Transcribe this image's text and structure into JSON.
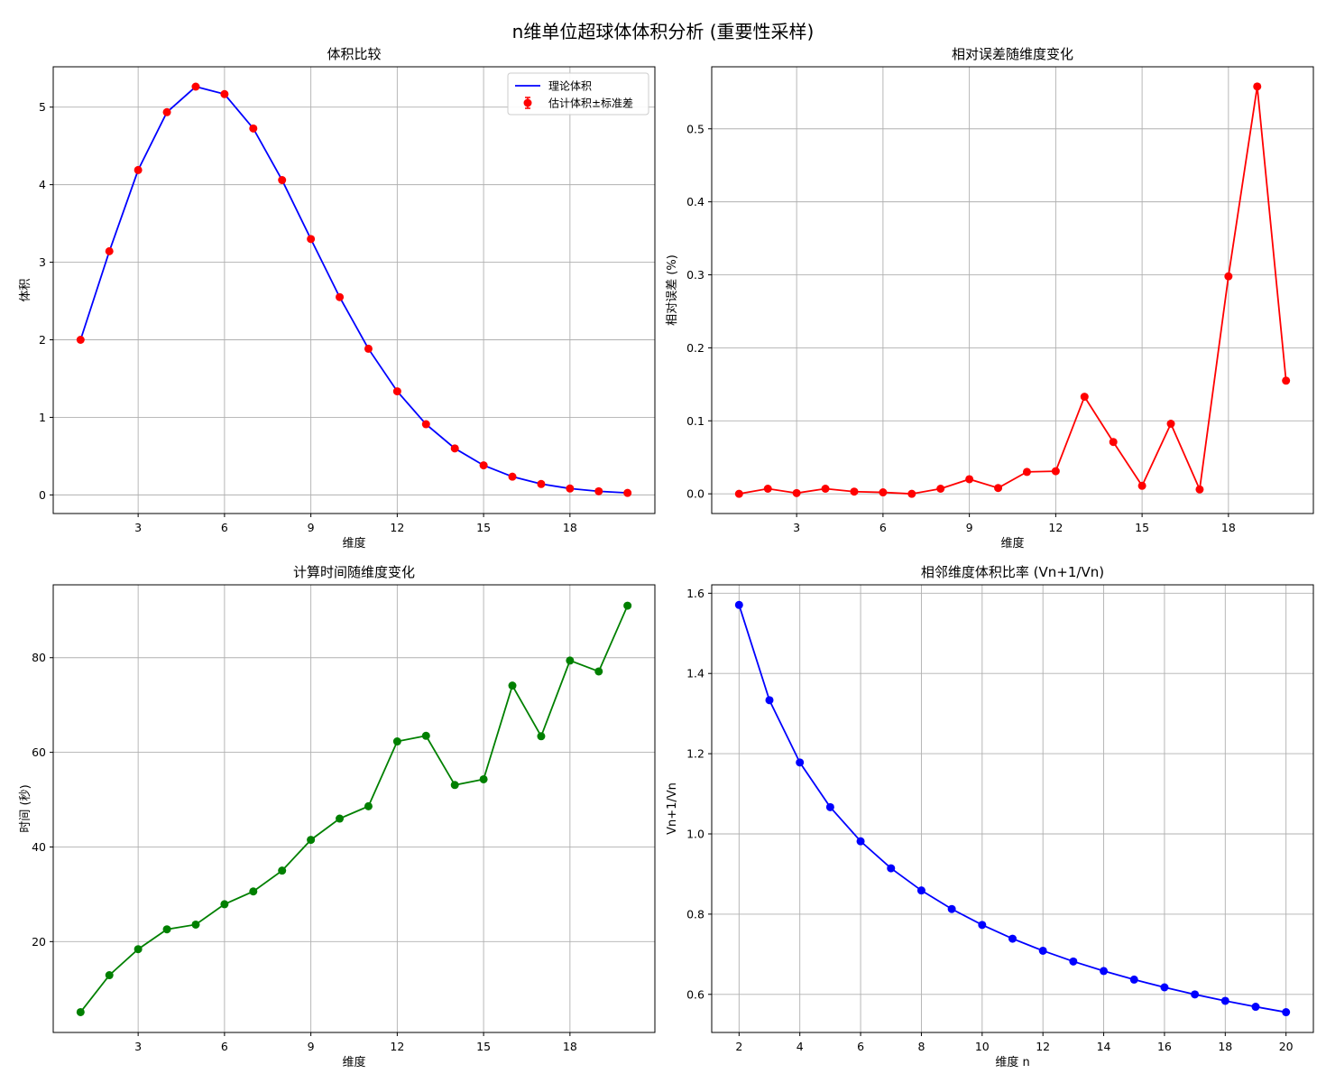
{
  "figure": {
    "title": "n维单位超球体体积分析 (重要性采样)"
  },
  "chart_data": [
    {
      "type": "line",
      "title": "体积比较",
      "xlabel": "维度",
      "ylabel": "体积",
      "xlim": [
        0.05,
        20.95
      ],
      "ylim": [
        -0.24,
        5.52
      ],
      "xticks": [
        3,
        6,
        9,
        12,
        15,
        18
      ],
      "yticks": [
        0,
        1,
        2,
        3,
        4,
        5
      ],
      "grid": true,
      "legend": "top-right",
      "series": [
        {
          "name": "理论体积",
          "kind": "line",
          "color": "#0000ff",
          "x": [
            1,
            2,
            3,
            4,
            5,
            6,
            7,
            8,
            9,
            10,
            11,
            12,
            13,
            14,
            15,
            16,
            17,
            18,
            19,
            20
          ],
          "values": [
            2.0,
            3.1416,
            4.1888,
            4.9348,
            5.2638,
            5.1677,
            4.7248,
            4.0587,
            3.2985,
            2.5502,
            1.8841,
            1.3353,
            0.9106,
            0.5993,
            0.3814,
            0.2353,
            0.141,
            0.0821,
            0.0466,
            0.0258
          ]
        },
        {
          "name": "估计体积±标准差",
          "kind": "errorbar-markers",
          "color": "#ff0000",
          "x": [
            1,
            2,
            3,
            4,
            5,
            6,
            7,
            8,
            9,
            10,
            11,
            12,
            13,
            14,
            15,
            16,
            17,
            18,
            19,
            20
          ],
          "values": [
            2.0,
            3.1418,
            4.1887,
            4.9352,
            5.264,
            5.1678,
            4.7248,
            4.059,
            3.2992,
            2.5504,
            1.8847,
            1.3357,
            0.9118,
            0.5997,
            0.3814,
            0.2355,
            0.141,
            0.0823,
            0.0467,
            0.0258
          ]
        }
      ]
    },
    {
      "type": "line",
      "title": "相对误差随维度变化",
      "xlabel": "维度",
      "ylabel": "相对误差 (%)",
      "xlim": [
        0.05,
        20.95
      ],
      "ylim": [
        -0.027,
        0.585
      ],
      "xticks": [
        3,
        6,
        9,
        12,
        15,
        18
      ],
      "yticks": [
        0.0,
        0.1,
        0.2,
        0.3,
        0.4,
        0.5
      ],
      "ytick_labels": [
        "0.0",
        "0.1",
        "0.2",
        "0.3",
        "0.4",
        "0.5"
      ],
      "grid": true,
      "series": [
        {
          "color": "#ff0000",
          "x": [
            1,
            2,
            3,
            4,
            5,
            6,
            7,
            8,
            9,
            10,
            11,
            12,
            13,
            14,
            15,
            16,
            17,
            18,
            19,
            20
          ],
          "values": [
            0.0,
            0.007,
            0.001,
            0.007,
            0.003,
            0.002,
            0.0,
            0.007,
            0.02,
            0.008,
            0.03,
            0.031,
            0.133,
            0.071,
            0.011,
            0.096,
            0.006,
            0.298,
            0.558,
            0.155
          ]
        }
      ]
    },
    {
      "type": "line",
      "title": "计算时间随维度变化",
      "xlabel": "维度",
      "ylabel": "时间 (秒)",
      "xlim": [
        0.05,
        20.95
      ],
      "ylim": [
        0.8,
        95.4
      ],
      "xticks": [
        3,
        6,
        9,
        12,
        15,
        18
      ],
      "yticks": [
        20,
        40,
        60,
        80
      ],
      "grid": true,
      "series": [
        {
          "color": "#008000",
          "x": [
            1,
            2,
            3,
            4,
            5,
            6,
            7,
            8,
            9,
            10,
            11,
            12,
            13,
            14,
            15,
            16,
            17,
            18,
            19,
            20
          ],
          "values": [
            5.1,
            12.9,
            18.4,
            22.6,
            23.6,
            27.9,
            30.6,
            35.0,
            41.5,
            46.0,
            48.6,
            62.3,
            63.5,
            53.1,
            54.3,
            74.1,
            63.4,
            79.4,
            77.1,
            91.0
          ]
        }
      ]
    },
    {
      "type": "line",
      "title": "相邻维度体积比率 (Vn+1/Vn)",
      "xlabel": "维度 n",
      "ylabel": "Vn+1/Vn",
      "xlim": [
        1.1,
        20.9
      ],
      "ylim": [
        0.505,
        1.621
      ],
      "xticks": [
        2,
        4,
        6,
        8,
        10,
        12,
        14,
        16,
        18,
        20
      ],
      "yticks": [
        0.6,
        0.8,
        1.0,
        1.2,
        1.4,
        1.6
      ],
      "ytick_labels": [
        "0.6",
        "0.8",
        "1.0",
        "1.2",
        "1.4",
        "1.6"
      ],
      "grid": true,
      "series": [
        {
          "color": "#0000ff",
          "x": [
            2,
            3,
            4,
            5,
            6,
            7,
            8,
            9,
            10,
            11,
            12,
            13,
            14,
            15,
            16,
            17,
            18,
            19,
            20
          ],
          "values": [
            1.5708,
            1.3333,
            1.1781,
            1.0667,
            0.9817,
            0.9143,
            0.859,
            0.8127,
            0.7731,
            0.7388,
            0.7087,
            0.682,
            0.6582,
            0.6368,
            0.6175,
            0.5999,
            0.5838,
            0.5691,
            0.5555
          ]
        }
      ]
    }
  ]
}
